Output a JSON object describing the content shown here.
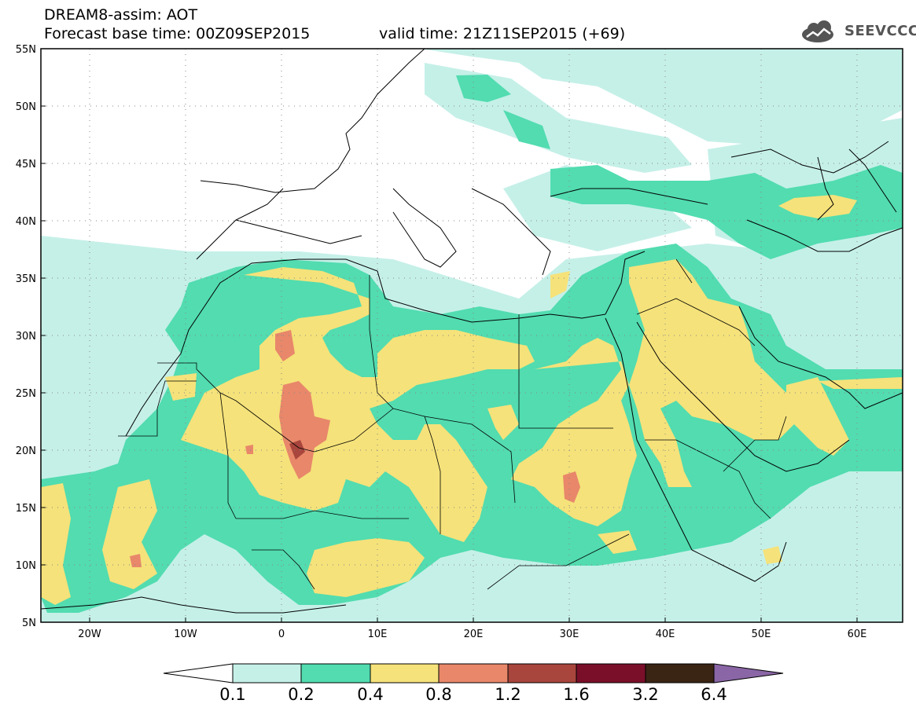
{
  "header": {
    "title": "DREAM8-assim: AOT",
    "base_time": "Forecast base time: 00Z09SEP2015",
    "valid_time": "valid time: 21Z11SEP2015 (+69)"
  },
  "logo": {
    "text": "SEEVCCC",
    "icon": "cloud-logo-icon"
  },
  "axes": {
    "lat_labels": [
      "55N",
      "50N",
      "45N",
      "40N",
      "35N",
      "30N",
      "25N",
      "20N",
      "15N",
      "10N",
      "5N"
    ],
    "lon_labels": [
      "20W",
      "10W",
      "0",
      "10E",
      "20E",
      "30E",
      "40E",
      "50E",
      "60E"
    ]
  },
  "colorbar": {
    "levels": [
      "0.1",
      "0.2",
      "0.4",
      "0.8",
      "1.2",
      "1.6",
      "3.2",
      "6.4"
    ],
    "colors": [
      "#ffffff",
      "#c5f0e8",
      "#52dcb0",
      "#f5e27a",
      "#e8876a",
      "#a8453c",
      "#7a0f2a",
      "#3a2414",
      "#8a66a6"
    ]
  },
  "colors": {
    "aot_0_1": "#c5f0e8",
    "aot_0_2": "#52dcb0",
    "aot_0_4": "#f5e27a",
    "aot_0_8": "#e8876a",
    "aot_1_2": "#a8453c",
    "coastline": "#000000"
  }
}
